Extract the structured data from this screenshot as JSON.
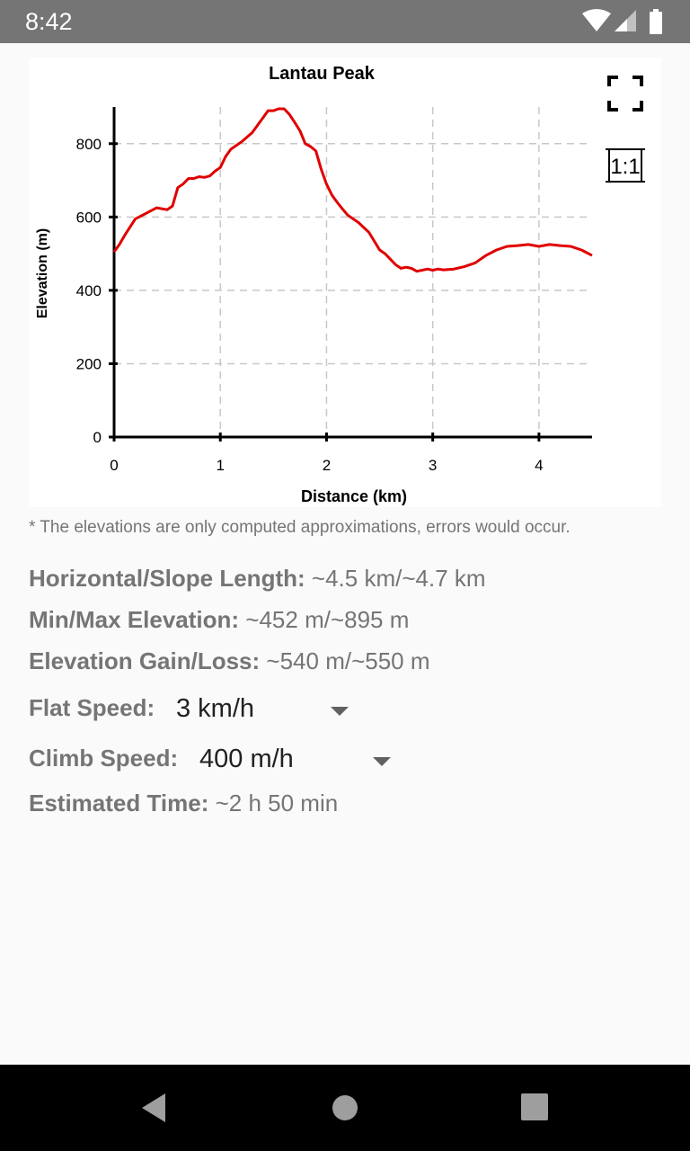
{
  "status_bar": {
    "time": "8:42"
  },
  "chart_data": {
    "type": "line",
    "title": "Lantau Peak",
    "xlabel": "Distance (km)",
    "ylabel": "Elevation (m)",
    "xlim": [
      0,
      4.5
    ],
    "ylim": [
      0,
      900
    ],
    "xticks": [
      0,
      1,
      2,
      3,
      4
    ],
    "yticks": [
      0,
      200,
      400,
      600,
      800
    ],
    "grid": true,
    "line_color": "#e00000",
    "series": [
      {
        "x": [
          0,
          0.05,
          0.1,
          0.2,
          0.3,
          0.4,
          0.5,
          0.55,
          0.6,
          0.65,
          0.7,
          0.75,
          0.8,
          0.85,
          0.9,
          0.95,
          1.0,
          1.05,
          1.1,
          1.2,
          1.3,
          1.4,
          1.45,
          1.5,
          1.55,
          1.6,
          1.65,
          1.7,
          1.75,
          1.8,
          1.85,
          1.9,
          1.95,
          2.0,
          2.05,
          2.1,
          2.15,
          2.2,
          2.3,
          2.4,
          2.5,
          2.55,
          2.6,
          2.65,
          2.7,
          2.75,
          2.8,
          2.85,
          2.9,
          2.95,
          3.0,
          3.05,
          3.1,
          3.2,
          3.3,
          3.4,
          3.5,
          3.6,
          3.7,
          3.8,
          3.9,
          4.0,
          4.1,
          4.2,
          4.3,
          4.4,
          4.5
        ],
        "y": [
          505,
          525,
          550,
          595,
          610,
          625,
          620,
          630,
          680,
          690,
          705,
          705,
          710,
          708,
          712,
          725,
          735,
          765,
          785,
          805,
          830,
          870,
          890,
          890,
          895,
          895,
          880,
          858,
          835,
          800,
          792,
          780,
          730,
          690,
          660,
          640,
          622,
          605,
          585,
          558,
          510,
          500,
          485,
          470,
          460,
          463,
          460,
          452,
          455,
          458,
          455,
          458,
          456,
          458,
          465,
          475,
          495,
          510,
          520,
          522,
          525,
          520,
          525,
          522,
          520,
          510,
          495
        ]
      }
    ]
  },
  "chart_buttons": {
    "fullscreen_icon": "fullscreen-icon",
    "one_to_one_label": "1:1"
  },
  "note": "* The elevations are only computed approximations, errors would occur.",
  "stats": {
    "length_label": "Horizontal/Slope Length:",
    "length_value": "~4.5 km/~4.7 km",
    "elevation_label": "Min/Max Elevation:",
    "elevation_value": "~452 m/~895 m",
    "gain_label": "Elevation Gain/Loss:",
    "gain_value": "~540 m/~550 m",
    "time_label": "Estimated Time:",
    "time_value": "~2 h 50 min"
  },
  "speed": {
    "flat_label": "Flat Speed:",
    "flat_value": "3 km/h",
    "climb_label": "Climb Speed:",
    "climb_value": "400 m/h"
  },
  "nav_bar": {
    "back_icon": "back-icon",
    "home_icon": "home-icon",
    "recents_icon": "recents-icon"
  }
}
